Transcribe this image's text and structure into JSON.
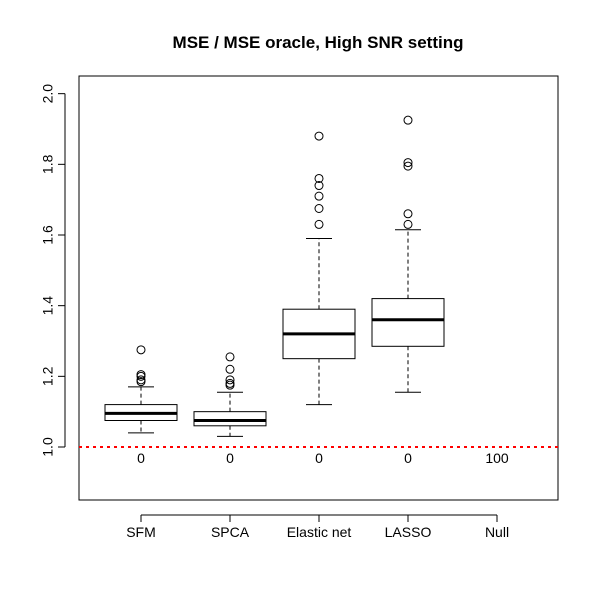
{
  "chart_data": {
    "type": "boxplot",
    "title": "MSE / MSE oracle, High SNR setting",
    "xlabel": "",
    "ylabel": "",
    "ylim": [
      0.85,
      2.05
    ],
    "yticks": [
      1.0,
      1.2,
      1.4,
      1.6,
      1.8,
      2.0
    ],
    "ytick_labels": [
      "1.0",
      "1.2",
      "1.4",
      "1.6",
      "1.8",
      "2.0"
    ],
    "reference_line": {
      "y": 1.0,
      "color": "#ff0000",
      "style": "dotted"
    },
    "categories": [
      "SFM",
      "SPCA",
      "Elastic net",
      "LASSO",
      "Null"
    ],
    "boxes": [
      {
        "name": "SFM",
        "whisker_low": 1.04,
        "q1": 1.075,
        "median": 1.095,
        "q3": 1.12,
        "whisker_high": 1.17,
        "outliers": [
          1.185,
          1.19,
          1.2,
          1.205,
          1.275
        ]
      },
      {
        "name": "SPCA",
        "whisker_low": 1.03,
        "q1": 1.06,
        "median": 1.075,
        "q3": 1.1,
        "whisker_high": 1.155,
        "outliers": [
          1.175,
          1.18,
          1.19,
          1.22,
          1.255
        ]
      },
      {
        "name": "Elastic net",
        "whisker_low": 1.12,
        "q1": 1.25,
        "median": 1.32,
        "q3": 1.39,
        "whisker_high": 1.59,
        "outliers": [
          1.63,
          1.675,
          1.71,
          1.74,
          1.76,
          1.88
        ]
      },
      {
        "name": "LASSO",
        "whisker_low": 1.155,
        "q1": 1.285,
        "median": 1.36,
        "q3": 1.42,
        "whisker_high": 1.615,
        "outliers": [
          1.63,
          1.66,
          1.795,
          1.805,
          1.925
        ]
      },
      {
        "name": "Null",
        "whisker_low": null,
        "q1": null,
        "median": null,
        "q3": null,
        "whisker_high": null,
        "outliers": []
      }
    ],
    "counts": [
      "0",
      "0",
      "0",
      "0",
      "100"
    ],
    "count_y": 0.965
  }
}
